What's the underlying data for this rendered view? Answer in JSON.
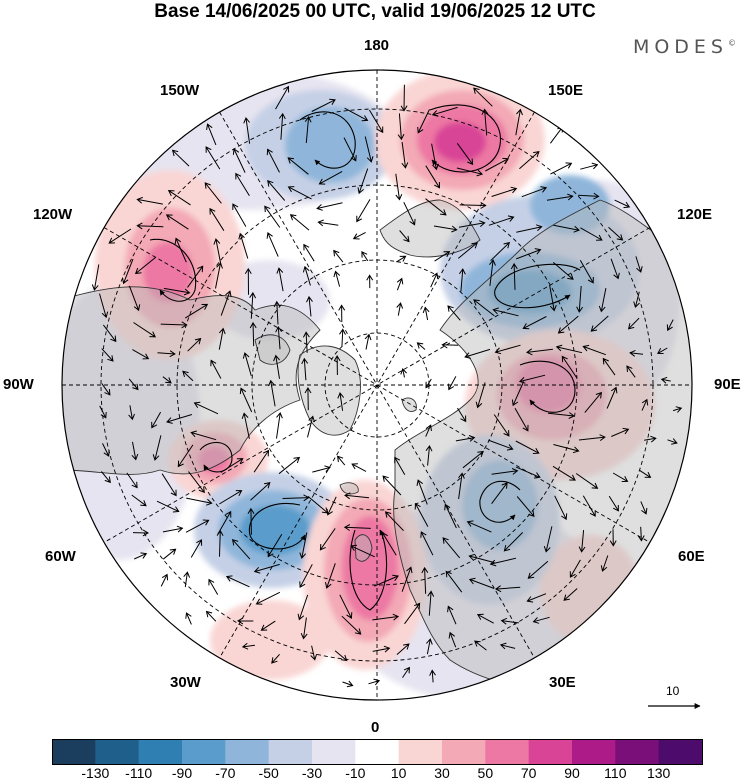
{
  "title": "Base 14/06/2025 00 UTC, valid 19/06/2025 12 UTC",
  "brand": "MODES",
  "brand_mark": "©",
  "longitude_labels": {
    "lon_180": "180",
    "lon_150e": "150E",
    "lon_120e": "120E",
    "lon_90e": "90E",
    "lon_60e": "60E",
    "lon_30e": "30E",
    "lon_0": "0",
    "lon_30w": "30W",
    "lon_60w": "60W",
    "lon_90w": "90W",
    "lon_120w": "120W",
    "lon_150w": "150W"
  },
  "colorbar": {
    "labels": [
      "-130",
      "-110",
      "-90",
      "-70",
      "-50",
      "-30",
      "-10",
      "10",
      "30",
      "50",
      "70",
      "90",
      "110",
      "130"
    ],
    "colors": [
      "#1b3d5e",
      "#1f5f8c",
      "#2f7fb3",
      "#5a9ccb",
      "#8fb6da",
      "#c5d0e6",
      "#e6e4f0",
      "#ffffff",
      "#f9d6d4",
      "#f3a9b6",
      "#ec78a3",
      "#d94496",
      "#ad1b88",
      "#7a0f79",
      "#4d0c6b"
    ]
  },
  "vector_scale": {
    "label": "10"
  },
  "anomaly_centers": [
    {
      "lon": "180-160W",
      "sign": "negative"
    },
    {
      "lon": "160E",
      "sign": "positive"
    },
    {
      "lon": "125W",
      "sign": "positive"
    },
    {
      "lon": "115E",
      "sign": "negative"
    },
    {
      "lon": "95E",
      "sign": "positive"
    },
    {
      "lon": "70W",
      "sign": "positive"
    },
    {
      "lon": "45W",
      "sign": "negative"
    },
    {
      "lon": "0-10W",
      "sign": "positive"
    },
    {
      "lon": "30E",
      "sign": "negative"
    }
  ]
}
